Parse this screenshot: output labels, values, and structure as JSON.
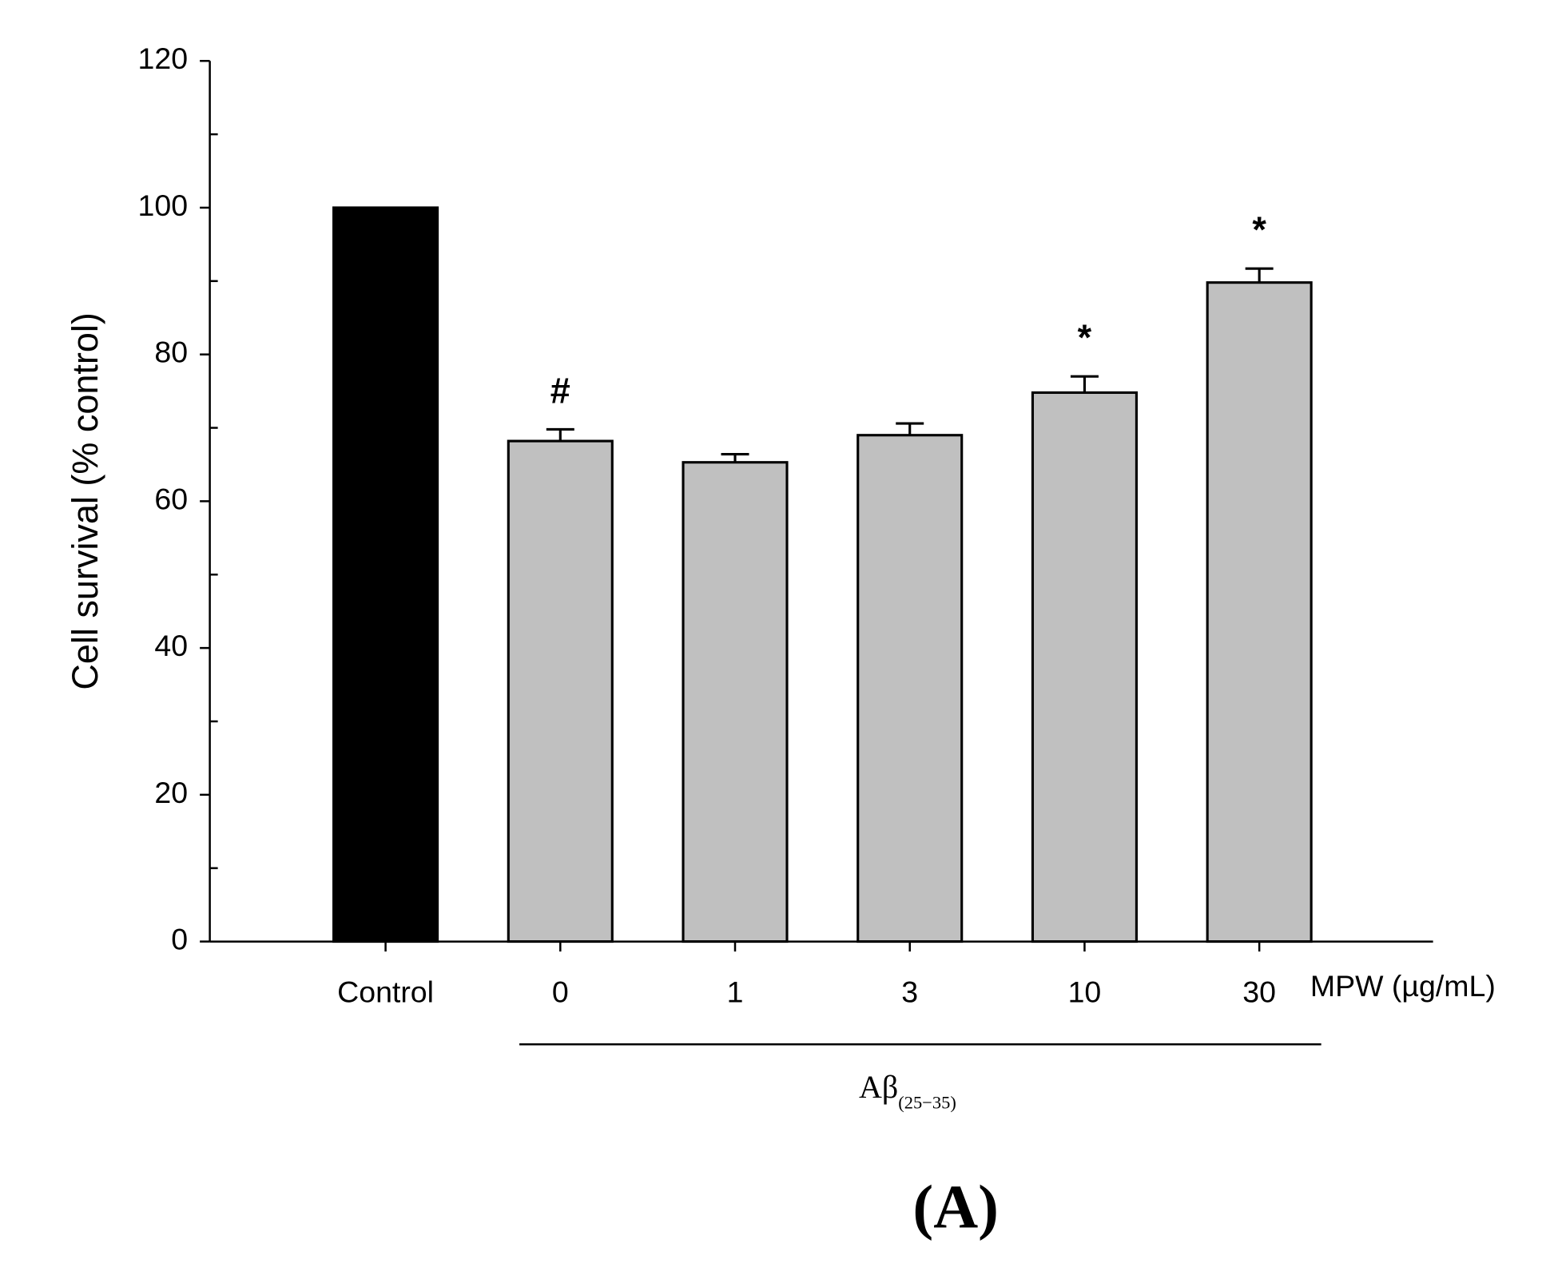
{
  "chart_data": {
    "type": "bar",
    "ylabel": "Cell survival (% control)",
    "categories": [
      "Control",
      "0",
      "1",
      "3",
      "10",
      "30"
    ],
    "values": [
      100,
      68.2,
      65.3,
      69.0,
      74.8,
      89.8
    ],
    "errors": [
      null,
      1.6,
      1.1,
      1.6,
      2.2,
      1.9
    ],
    "colors": [
      "#000000",
      "#c0c0c0",
      "#c0c0c0",
      "#c0c0c0",
      "#c0c0c0",
      "#c0c0c0"
    ],
    "annotations": [
      null,
      "#",
      null,
      null,
      "*",
      "*"
    ],
    "x_unit_label": "MPW (µg/mL)",
    "group_label": "Aβ",
    "group_label_subscript": "(25−35)",
    "panel_label": "(A)",
    "ylim": [
      0,
      120
    ],
    "yticks": [
      0,
      20,
      40,
      60,
      80,
      100,
      120
    ],
    "minor_yticks": [
      10,
      30,
      50,
      70,
      90,
      110
    ]
  }
}
